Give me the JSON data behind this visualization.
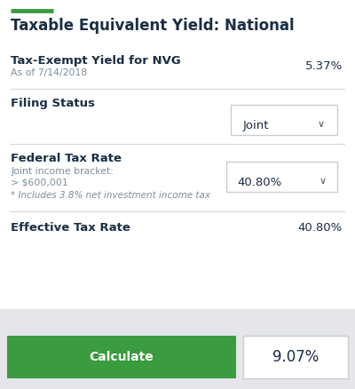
{
  "title": "Taxable Equivalent Yield: National",
  "accent_color": "#3a9b3f",
  "title_color": "#1a2e44",
  "label_color": "#1a2e44",
  "subtext_color": "#7a8e9e",
  "bg_color": "#ffffff",
  "footer_bg_color": "#e4e6e9",
  "green_btn_color": "#3a9b3f",
  "box_border_color": "#c8cdd2",
  "row1_label": "Tax-Exempt Yield for NVG",
  "row1_sublabel": "As of 7/14/2018",
  "row1_value": "5.37%",
  "row2_label": "Filing Status",
  "row2_dropdown": "Joint",
  "row3_label": "Federal Tax Rate",
  "row3_sub1": "Joint income bracket:",
  "row3_sub2": "> $600,001",
  "row3_sub3": "* Includes 3.8% net investment income tax",
  "row3_dropdown": "40.80%",
  "row4_label": "Effective Tax Rate",
  "row4_value": "40.80%",
  "btn_label": "Calculate",
  "result_value": "9.07%"
}
